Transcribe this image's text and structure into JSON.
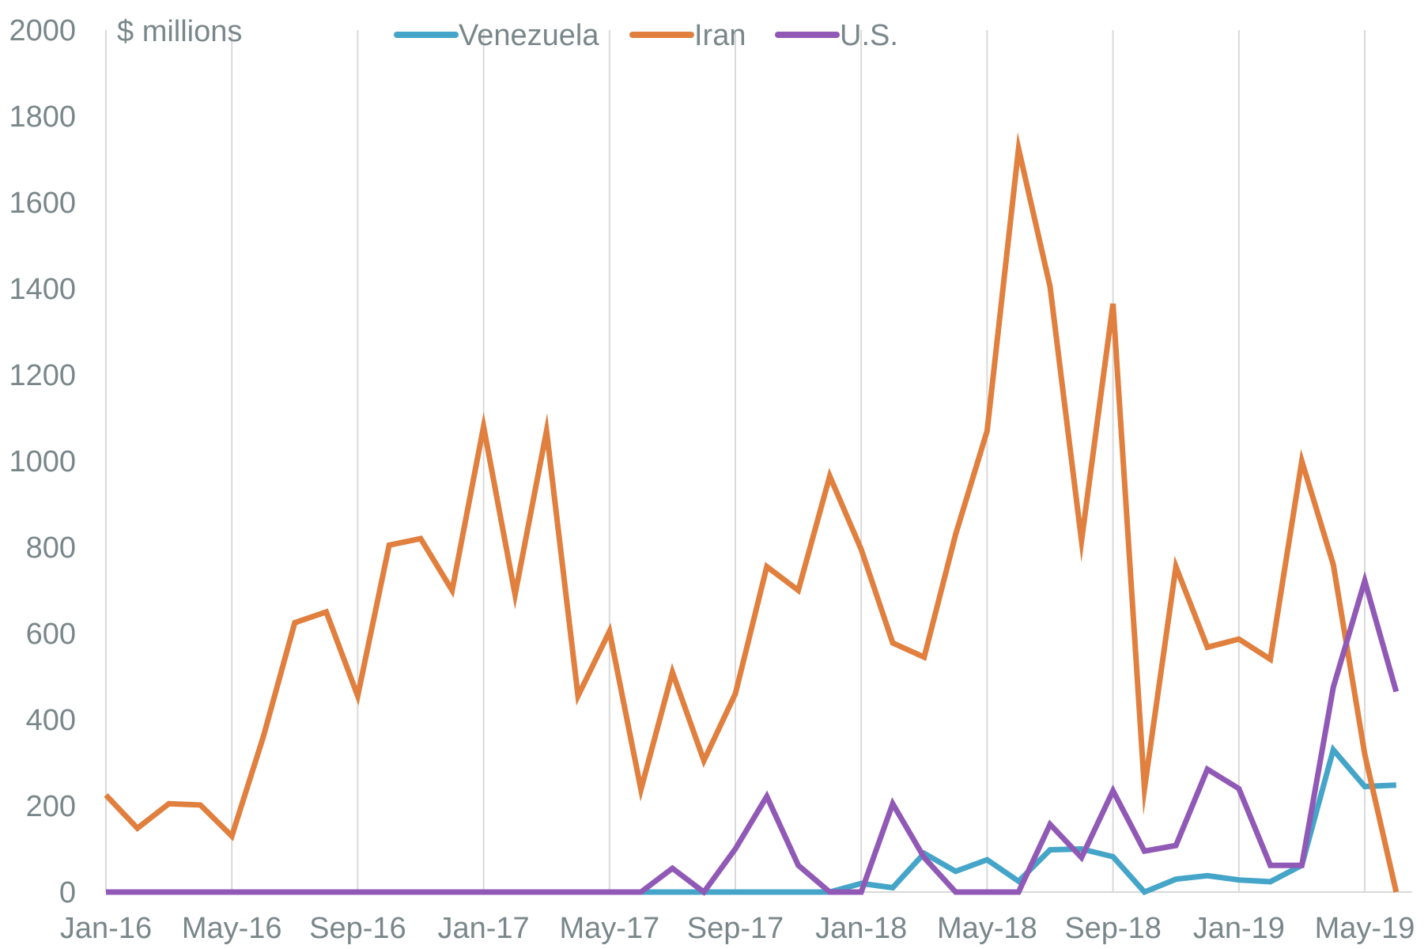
{
  "chart_data": {
    "type": "line",
    "unit_label": "$ millions",
    "ylim": [
      0,
      2000
    ],
    "y_ticks": [
      0,
      200,
      400,
      600,
      800,
      1000,
      1200,
      1400,
      1600,
      1800,
      2000
    ],
    "x_tick_labels": [
      "Jan-16",
      "May-16",
      "Sep-16",
      "Jan-17",
      "May-17",
      "Sep-17",
      "Jan-18",
      "May-18",
      "Sep-18",
      "Jan-19",
      "May-19"
    ],
    "grid": "vertical",
    "legend_position": "top",
    "x": [
      "Jan-16",
      "Feb-16",
      "Mar-16",
      "Apr-16",
      "May-16",
      "Jun-16",
      "Jul-16",
      "Aug-16",
      "Sep-16",
      "Oct-16",
      "Nov-16",
      "Dec-16",
      "Jan-17",
      "Feb-17",
      "Mar-17",
      "Apr-17",
      "May-17",
      "Jun-17",
      "Jul-17",
      "Aug-17",
      "Sep-17",
      "Oct-17",
      "Nov-17",
      "Dec-17",
      "Jan-18",
      "Feb-18",
      "Mar-18",
      "Apr-18",
      "May-18",
      "Jun-18",
      "Jul-18",
      "Aug-18",
      "Sep-18",
      "Oct-18",
      "Nov-18",
      "Dec-18",
      "Jan-19",
      "Feb-19",
      "Mar-19",
      "Apr-19",
      "May-19",
      "Jun-19"
    ],
    "series": [
      {
        "name": "Venezuela",
        "color": "#45a5c9",
        "values": [
          0,
          0,
          0,
          0,
          0,
          0,
          0,
          0,
          0,
          0,
          0,
          0,
          0,
          0,
          0,
          0,
          0,
          0,
          0,
          0,
          0,
          0,
          0,
          0,
          20,
          10,
          90,
          48,
          75,
          25,
          98,
          100,
          82,
          0,
          30,
          38,
          28,
          24,
          62,
          330,
          245,
          248
        ]
      },
      {
        "name": "Iran",
        "color": "#e07f3e",
        "values": [
          225,
          148,
          205,
          202,
          130,
          360,
          625,
          650,
          455,
          805,
          820,
          700,
          1080,
          690,
          1070,
          455,
          605,
          238,
          510,
          305,
          460,
          755,
          700,
          965,
          795,
          578,
          545,
          830,
          1070,
          1725,
          1405,
          815,
          1365,
          240,
          755,
          568,
          587,
          540,
          1000,
          760,
          320,
          0
        ]
      },
      {
        "name": "U.S.",
        "color": "#9159b6",
        "values": [
          0,
          0,
          0,
          0,
          0,
          0,
          0,
          0,
          0,
          0,
          0,
          0,
          0,
          0,
          0,
          0,
          0,
          0,
          55,
          0,
          100,
          222,
          62,
          0,
          0,
          205,
          80,
          0,
          0,
          0,
          157,
          80,
          235,
          95,
          108,
          285,
          240,
          62,
          62,
          475,
          722,
          465
        ]
      }
    ]
  }
}
